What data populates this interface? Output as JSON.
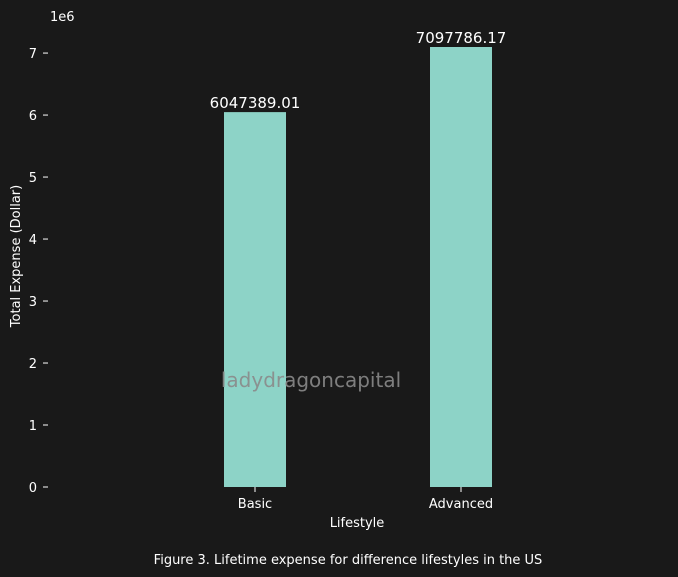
{
  "chart_data": {
    "type": "bar",
    "categories": [
      "Basic",
      "Advanced"
    ],
    "values": [
      6047389.01,
      7097786.17
    ],
    "value_labels": [
      "6047389.01",
      "7097786.17"
    ],
    "xlabel": "Lifestyle",
    "ylabel": "Total Expense (Dollar)",
    "ylim": [
      0,
      7097786.17
    ],
    "yticks": [
      0,
      1,
      2,
      3,
      4,
      5,
      6,
      7
    ],
    "y_offset_label": "1e6",
    "grid": false,
    "legend": "none",
    "bar_color": "#8dd3c7",
    "background": "#191919",
    "watermark": "ladydragoncapital",
    "caption": "Figure 3. Lifetime expense for difference lifestyles in the US"
  }
}
